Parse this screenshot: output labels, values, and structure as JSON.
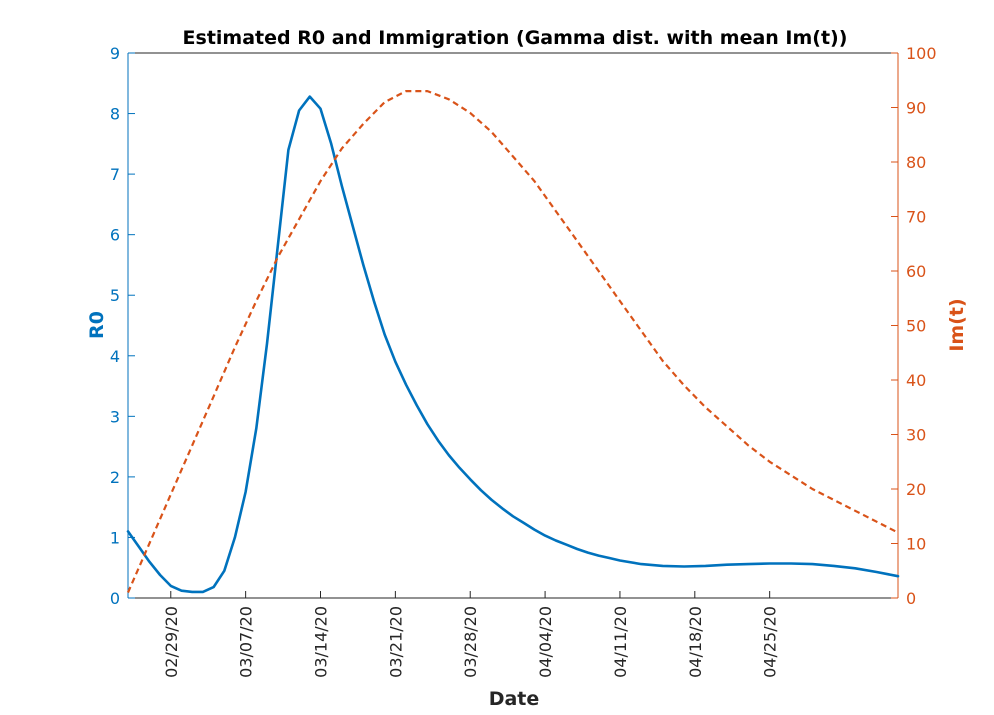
{
  "chart_data": {
    "type": "line",
    "title": "Estimated R0 and Immigration (Gamma dist. with mean Im(t))",
    "xlabel": "Date",
    "ylabel_left": "R0",
    "ylabel_right": "Im(t)",
    "x_range_days": [
      -4,
      68
    ],
    "x_ticks": [
      {
        "day": 0,
        "label": "02/29/20"
      },
      {
        "day": 7,
        "label": "03/07/20"
      },
      {
        "day": 14,
        "label": "03/14/20"
      },
      {
        "day": 21,
        "label": "03/21/20"
      },
      {
        "day": 28,
        "label": "03/28/20"
      },
      {
        "day": 35,
        "label": "04/04/20"
      },
      {
        "day": 42,
        "label": "04/11/20"
      },
      {
        "day": 49,
        "label": "04/18/20"
      },
      {
        "day": 56,
        "label": "04/25/20"
      }
    ],
    "ylim_left": [
      0,
      9
    ],
    "yticks_left": [
      "0",
      "1",
      "2",
      "3",
      "4",
      "5",
      "6",
      "7",
      "8",
      "9"
    ],
    "ylim_right": [
      0,
      100
    ],
    "yticks_right": [
      "0",
      "10",
      "20",
      "30",
      "40",
      "50",
      "60",
      "70",
      "80",
      "90",
      "100"
    ],
    "grid": false,
    "colors": {
      "left": "#0072BD",
      "right": "#D95319",
      "axis_x": "#262626"
    },
    "series": [
      {
        "axis": "left",
        "style": "solid",
        "color": "#0072BD",
        "x": [
          -4,
          -3,
          -2,
          -1,
          0,
          1,
          2,
          3,
          4,
          5,
          6,
          7,
          8,
          9,
          10,
          11,
          12,
          13,
          14,
          15,
          16,
          17,
          18,
          19,
          20,
          21,
          22,
          23,
          24,
          25,
          26,
          27,
          28,
          29,
          30,
          31,
          32,
          33,
          34,
          35,
          36,
          37,
          38,
          39,
          40,
          41,
          42,
          44,
          46,
          48,
          50,
          52,
          54,
          56,
          58,
          60,
          62,
          64,
          66,
          68
        ],
        "values": [
          1.1,
          0.85,
          0.6,
          0.38,
          0.2,
          0.12,
          0.1,
          0.1,
          0.18,
          0.45,
          1.0,
          1.75,
          2.8,
          4.2,
          5.8,
          7.4,
          8.05,
          8.28,
          8.08,
          7.5,
          6.8,
          6.15,
          5.5,
          4.9,
          4.35,
          3.9,
          3.52,
          3.18,
          2.87,
          2.6,
          2.36,
          2.15,
          1.96,
          1.78,
          1.62,
          1.48,
          1.35,
          1.24,
          1.13,
          1.03,
          0.95,
          0.88,
          0.81,
          0.75,
          0.7,
          0.66,
          0.62,
          0.56,
          0.53,
          0.52,
          0.53,
          0.55,
          0.56,
          0.57,
          0.57,
          0.56,
          0.53,
          0.49,
          0.43,
          0.36
        ]
      },
      {
        "axis": "right",
        "style": "dashed",
        "color": "#D95319",
        "x": [
          -4,
          -2,
          0,
          2,
          4,
          6,
          8,
          10,
          12,
          14,
          16,
          18,
          20,
          22,
          24,
          26,
          28,
          30,
          32,
          34,
          36,
          38,
          40,
          42,
          44,
          46,
          48,
          50,
          52,
          54,
          56,
          58,
          60,
          62,
          64,
          66,
          68
        ],
        "values": [
          1.0,
          10.0,
          19.0,
          28.0,
          37.0,
          46.0,
          54.5,
          62.5,
          69.5,
          76.5,
          82.5,
          87.0,
          91.0,
          93.0,
          93.0,
          91.5,
          89.0,
          85.5,
          81.0,
          76.5,
          71.0,
          65.5,
          60.0,
          54.5,
          49.0,
          43.5,
          39.0,
          35.0,
          31.5,
          28.0,
          25.0,
          22.5,
          20.0,
          18.0,
          16.0,
          14.0,
          12.0
        ]
      }
    ]
  }
}
